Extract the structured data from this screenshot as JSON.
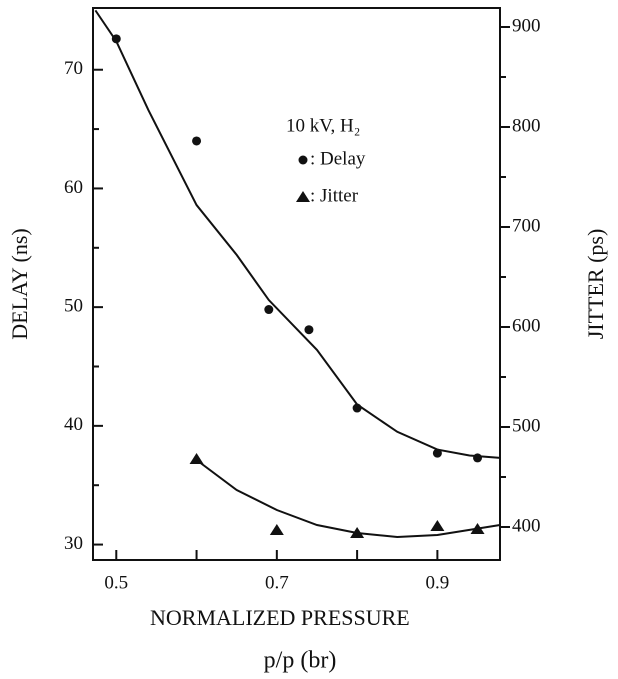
{
  "chart_data": {
    "type": "scatter",
    "x_label_lines": [
      "NORMALIZED PRESSURE",
      "p/p (br)"
    ],
    "y_label": "DELAY (ns)",
    "y2_label": "JITTER (ps)",
    "annotation": "10 kV, H₂",
    "xlim": [
      0.471,
      0.978
    ],
    "xticks": [
      0.5,
      0.7,
      0.9
    ],
    "xminorticks": [
      0.6,
      0.8
    ],
    "ylim": [
      28.7,
      75.2
    ],
    "yticks": [
      30,
      40,
      50,
      60,
      70
    ],
    "yminorticks": [
      35,
      45,
      55,
      65
    ],
    "y2lim": [
      367,
      919
    ],
    "y2ticks": [
      400,
      500,
      600,
      700,
      800,
      900
    ],
    "y2minorticks": [
      450,
      550,
      650,
      750,
      850
    ],
    "series": [
      {
        "name": ": Delay",
        "color": "#111111",
        "marker": "circle",
        "axis": "y",
        "x": [
          0.5,
          0.6,
          0.69,
          0.74,
          0.8,
          0.9,
          0.95
        ],
        "values": [
          72.6,
          64.0,
          49.8,
          48.1,
          41.5,
          37.7,
          37.3
        ]
      },
      {
        "name": ": Jitter",
        "color": "#111111",
        "marker": "triangle",
        "axis": "y2",
        "x": [
          0.6,
          0.7,
          0.8,
          0.9,
          0.95
        ],
        "values": [
          468,
          397,
          394,
          401,
          398
        ]
      }
    ],
    "fits": [
      {
        "axis": "y",
        "x": [
          0.474,
          0.5,
          0.54,
          0.6,
          0.65,
          0.69,
          0.75,
          0.8,
          0.85,
          0.9,
          0.94,
          0.978
        ],
        "values": [
          75.0,
          72.4,
          66.6,
          58.6,
          54.4,
          50.6,
          46.4,
          41.8,
          39.5,
          38.0,
          37.5,
          37.3
        ]
      },
      {
        "axis": "y2",
        "x": [
          0.6,
          0.65,
          0.7,
          0.75,
          0.8,
          0.85,
          0.9,
          0.978
        ],
        "values": [
          467,
          437,
          417,
          402,
          394,
          390,
          392,
          402
        ]
      }
    ]
  }
}
